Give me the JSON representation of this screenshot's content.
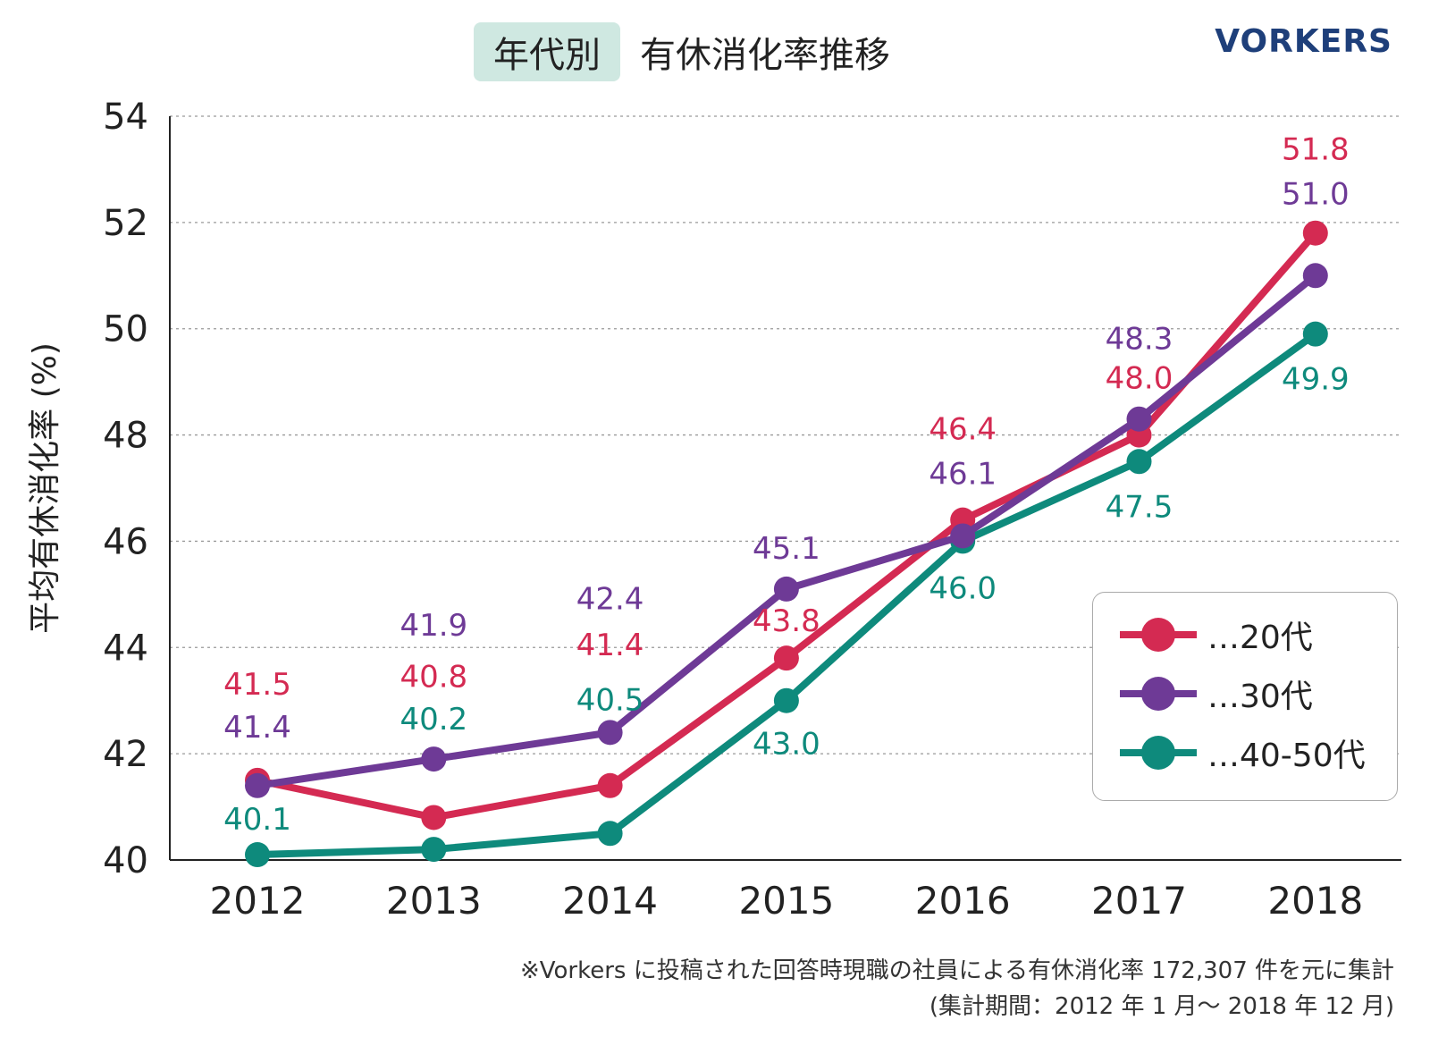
{
  "header": {
    "badge": "年代別",
    "title": "有休消化率推移",
    "brand": "VORKERS"
  },
  "chart_data": {
    "type": "line",
    "title": "年代別 有休消化率推移",
    "ylabel": "平均有休消化率 (%)",
    "xlabel": "",
    "categories": [
      "2012",
      "2013",
      "2014",
      "2015",
      "2016",
      "2017",
      "2018"
    ],
    "ylim": [
      40,
      54
    ],
    "yticks": [
      40,
      42,
      44,
      46,
      48,
      50,
      52,
      54
    ],
    "grid": true,
    "legend_position": "right",
    "series": [
      {
        "name": "…20代",
        "color": "#d42a52",
        "values": [
          41.5,
          40.8,
          41.4,
          43.8,
          46.4,
          48.0,
          51.8
        ],
        "labels": [
          "41.5",
          "40.8",
          "41.4",
          "43.8",
          "46.4",
          "48.0",
          "51.8"
        ]
      },
      {
        "name": "…30代",
        "color": "#6e3a96",
        "values": [
          41.4,
          41.9,
          42.4,
          45.1,
          46.1,
          48.3,
          51.0
        ],
        "labels": [
          "41.4",
          "41.9",
          "42.4",
          "45.1",
          "46.1",
          "48.3",
          "51.0"
        ]
      },
      {
        "name": "…40-50代",
        "color": "#0e8a7c",
        "values": [
          40.1,
          40.2,
          40.5,
          43.0,
          46.0,
          47.5,
          49.9
        ],
        "labels": [
          "40.1",
          "40.2",
          "40.5",
          "43.0",
          "46.0",
          "47.5",
          "49.9"
        ]
      }
    ]
  },
  "footnote": {
    "line1": "※Vorkers に投稿された回答時現職の社員による有休消化率 172,307 件を元に集計",
    "line2": "(集計期間：2012 年 1 月～ 2018 年 12 月)"
  }
}
